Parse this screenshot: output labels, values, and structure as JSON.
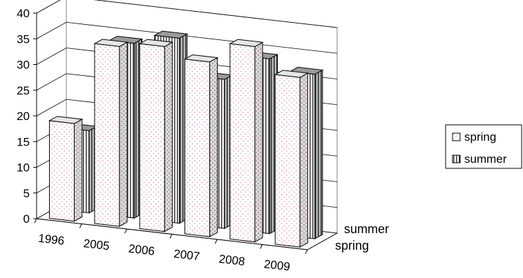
{
  "chart_data": {
    "type": "bar",
    "subtype": "3d-clustered-column",
    "title": "",
    "xlabel": "",
    "ylabel": "",
    "categories": [
      "1996",
      "2005",
      "2006",
      "2007",
      "2008",
      "2009"
    ],
    "series": [
      {
        "name": "spring",
        "values": [
          19,
          35,
          36,
          34,
          38,
          33
        ],
        "fill": "pink-dotted"
      },
      {
        "name": "summer",
        "values": [
          16,
          34,
          36,
          29,
          34,
          32
        ],
        "fill": "vertical-stripes"
      }
    ],
    "depth_labels": [
      "summer",
      "spring"
    ],
    "ylim": [
      0,
      40
    ],
    "y_ticks": [
      "0",
      "5",
      "10",
      "15",
      "20",
      "25",
      "30",
      "35",
      "40"
    ],
    "grid": true,
    "legend_position": "right",
    "colors": {
      "spring_dot": "#e3a0b4",
      "summer_stripe": "#555555",
      "gridline": "#000000"
    }
  }
}
